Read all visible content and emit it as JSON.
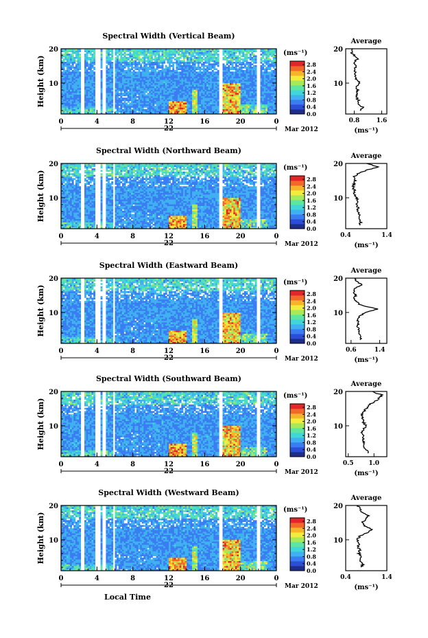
{
  "figure": {
    "xlabel": "Local Time",
    "date_label": "Mar 2012",
    "day_label": "22",
    "ylabel": "Height (km)",
    "unit_label": "(ms⁻¹)",
    "colormap": [
      "#1f2d8a",
      "#2a4fd6",
      "#3a7cf2",
      "#3fb0f0",
      "#41d6d8",
      "#5ee6a0",
      "#a6ea5a",
      "#f2ec3c",
      "#f7b32a",
      "#f2682a",
      "#e0262a"
    ]
  },
  "chart_data": [
    {
      "type": "heatmap",
      "title": "Spectral Width (Vertical Beam)",
      "xlabel": "",
      "ylabel": "Height (km)",
      "x_ticks": [
        "0",
        "4",
        "8",
        "12",
        "16",
        "20",
        "0"
      ],
      "xlim": [
        0,
        24
      ],
      "y_ticks": [
        "10",
        "20"
      ],
      "ylim": [
        1,
        20
      ],
      "colorbar": {
        "label": "(ms⁻¹)",
        "ticks": [
          "0.0",
          "0.4",
          "0.8",
          "1.2",
          "1.6",
          "2.0",
          "2.4",
          "2.8"
        ],
        "range": [
          0,
          3
        ]
      },
      "average_profile": {
        "title": "Average",
        "xlabel": "(ms⁻¹)",
        "x_ticks": [
          "0.8",
          "1.6"
        ],
        "xlim": [
          0.55,
          1.75
        ],
        "y_ticks": [
          "10",
          "20"
        ],
        "ylim": [
          1,
          20
        ],
        "heights": [
          2,
          3,
          4,
          5,
          6,
          7,
          8,
          9,
          10,
          11,
          12,
          13,
          14,
          15,
          16,
          17,
          18,
          19,
          20
        ],
        "values": [
          0.95,
          1.05,
          0.9,
          0.92,
          0.85,
          0.88,
          0.9,
          0.85,
          0.95,
          0.88,
          0.82,
          0.84,
          0.8,
          0.86,
          0.78,
          0.9,
          0.8,
          0.72,
          0.75
        ]
      }
    },
    {
      "type": "heatmap",
      "title": "Spectral Width (Northward Beam)",
      "xlabel": "",
      "ylabel": "Height (km)",
      "x_ticks": [
        "0",
        "4",
        "8",
        "12",
        "16",
        "20",
        "0"
      ],
      "xlim": [
        0,
        24
      ],
      "y_ticks": [
        "10",
        "20"
      ],
      "ylim": [
        1,
        20
      ],
      "colorbar": {
        "label": "(ms⁻¹)",
        "ticks": [
          "0.0",
          "0.4",
          "0.8",
          "1.2",
          "1.6",
          "2.0",
          "2.4",
          "2.8"
        ],
        "range": [
          0,
          3
        ]
      },
      "average_profile": {
        "title": "Average",
        "xlabel": "(ms⁻¹)",
        "x_ticks": [
          "0.4",
          "1.4"
        ],
        "xlim": [
          0.4,
          1.4
        ],
        "y_ticks": [
          "10",
          "20"
        ],
        "ylim": [
          1,
          20
        ],
        "heights": [
          2,
          3,
          4,
          5,
          6,
          7,
          8,
          9,
          10,
          11,
          12,
          13,
          14,
          15,
          16,
          17,
          18,
          19,
          20
        ],
        "values": [
          0.72,
          0.78,
          0.7,
          0.74,
          0.68,
          0.7,
          0.65,
          0.7,
          0.66,
          0.6,
          0.62,
          0.58,
          0.6,
          0.64,
          0.58,
          0.7,
          0.9,
          1.2,
          0.9
        ]
      }
    },
    {
      "type": "heatmap",
      "title": "Spectral Width (Eastward Beam)",
      "xlabel": "",
      "ylabel": "Height (km)",
      "x_ticks": [
        "0",
        "4",
        "8",
        "12",
        "16",
        "20",
        "0"
      ],
      "xlim": [
        0,
        24
      ],
      "y_ticks": [
        "10",
        "20"
      ],
      "ylim": [
        1,
        20
      ],
      "colorbar": {
        "label": "(ms⁻¹)",
        "ticks": [
          "0.0",
          "0.4",
          "0.8",
          "1.2",
          "1.6",
          "2.0",
          "2.4",
          "2.8"
        ],
        "range": [
          0,
          3
        ]
      },
      "average_profile": {
        "title": "Average",
        "xlabel": "(ms⁻¹)",
        "x_ticks": [
          "0.6",
          "1.4"
        ],
        "xlim": [
          0.45,
          1.6
        ],
        "y_ticks": [
          "10",
          "20"
        ],
        "ylim": [
          1,
          20
        ],
        "heights": [
          2,
          3,
          4,
          5,
          6,
          7,
          8,
          9,
          10,
          11,
          12,
          13,
          14,
          15,
          16,
          17,
          18,
          19,
          20
        ],
        "values": [
          0.85,
          0.9,
          0.8,
          0.82,
          0.78,
          0.8,
          0.75,
          0.85,
          1.0,
          1.35,
          0.9,
          0.75,
          0.7,
          0.72,
          0.68,
          0.7,
          0.9,
          0.75,
          0.7
        ]
      }
    },
    {
      "type": "heatmap",
      "title": "Spectral Width (Southward Beam)",
      "xlabel": "",
      "ylabel": "Height (km)",
      "x_ticks": [
        "0",
        "4",
        "8",
        "12",
        "16",
        "20",
        "0"
      ],
      "xlim": [
        0,
        24
      ],
      "y_ticks": [
        "10",
        "20"
      ],
      "ylim": [
        1,
        20
      ],
      "colorbar": {
        "label": "(ms⁻¹)",
        "ticks": [
          "0.0",
          "0.4",
          "0.8",
          "1.2",
          "1.6",
          "2.0",
          "2.4",
          "2.8"
        ],
        "range": [
          0,
          3
        ]
      },
      "average_profile": {
        "title": "Average",
        "xlabel": "(ms⁻¹)",
        "x_ticks": [
          "0.5",
          "1.0"
        ],
        "xlim": [
          0.45,
          1.25
        ],
        "y_ticks": [
          "10",
          "20"
        ],
        "ylim": [
          1,
          20
        ],
        "heights": [
          2,
          3,
          4,
          5,
          6,
          7,
          8,
          9,
          10,
          11,
          12,
          13,
          14,
          15,
          16,
          17,
          18,
          19,
          20
        ],
        "values": [
          0.9,
          0.85,
          0.8,
          0.82,
          0.78,
          0.8,
          0.76,
          0.8,
          0.84,
          0.8,
          0.78,
          0.76,
          0.8,
          0.85,
          0.9,
          1.0,
          1.1,
          1.15,
          0.95
        ]
      }
    },
    {
      "type": "heatmap",
      "title": "Spectral Width (Westward Beam)",
      "xlabel": "Local Time",
      "ylabel": "Height (km)",
      "x_ticks": [
        "0",
        "4",
        "8",
        "12",
        "16",
        "20",
        "0"
      ],
      "xlim": [
        0,
        24
      ],
      "y_ticks": [
        "10",
        "20"
      ],
      "ylim": [
        1,
        20
      ],
      "colorbar": {
        "label": "(ms⁻¹)",
        "ticks": [
          "0.0",
          "0.4",
          "0.8",
          "1.2",
          "1.6",
          "2.0",
          "2.4",
          "2.8"
        ],
        "range": [
          0,
          3
        ]
      },
      "average_profile": {
        "title": "Average",
        "xlabel": "(ms⁻¹)",
        "x_ticks": [
          "0.4",
          "1.4"
        ],
        "xlim": [
          0.4,
          1.4
        ],
        "y_ticks": [
          "10",
          "20"
        ],
        "ylim": [
          1,
          20
        ],
        "heights": [
          2,
          3,
          4,
          5,
          6,
          7,
          8,
          9,
          10,
          11,
          12,
          13,
          14,
          15,
          16,
          17,
          18,
          19,
          20
        ],
        "values": [
          0.78,
          0.82,
          0.75,
          0.78,
          0.72,
          0.74,
          0.7,
          0.72,
          0.68,
          0.74,
          0.9,
          1.05,
          0.85,
          0.8,
          0.9,
          0.95,
          0.8,
          0.75,
          0.7
        ]
      }
    }
  ]
}
